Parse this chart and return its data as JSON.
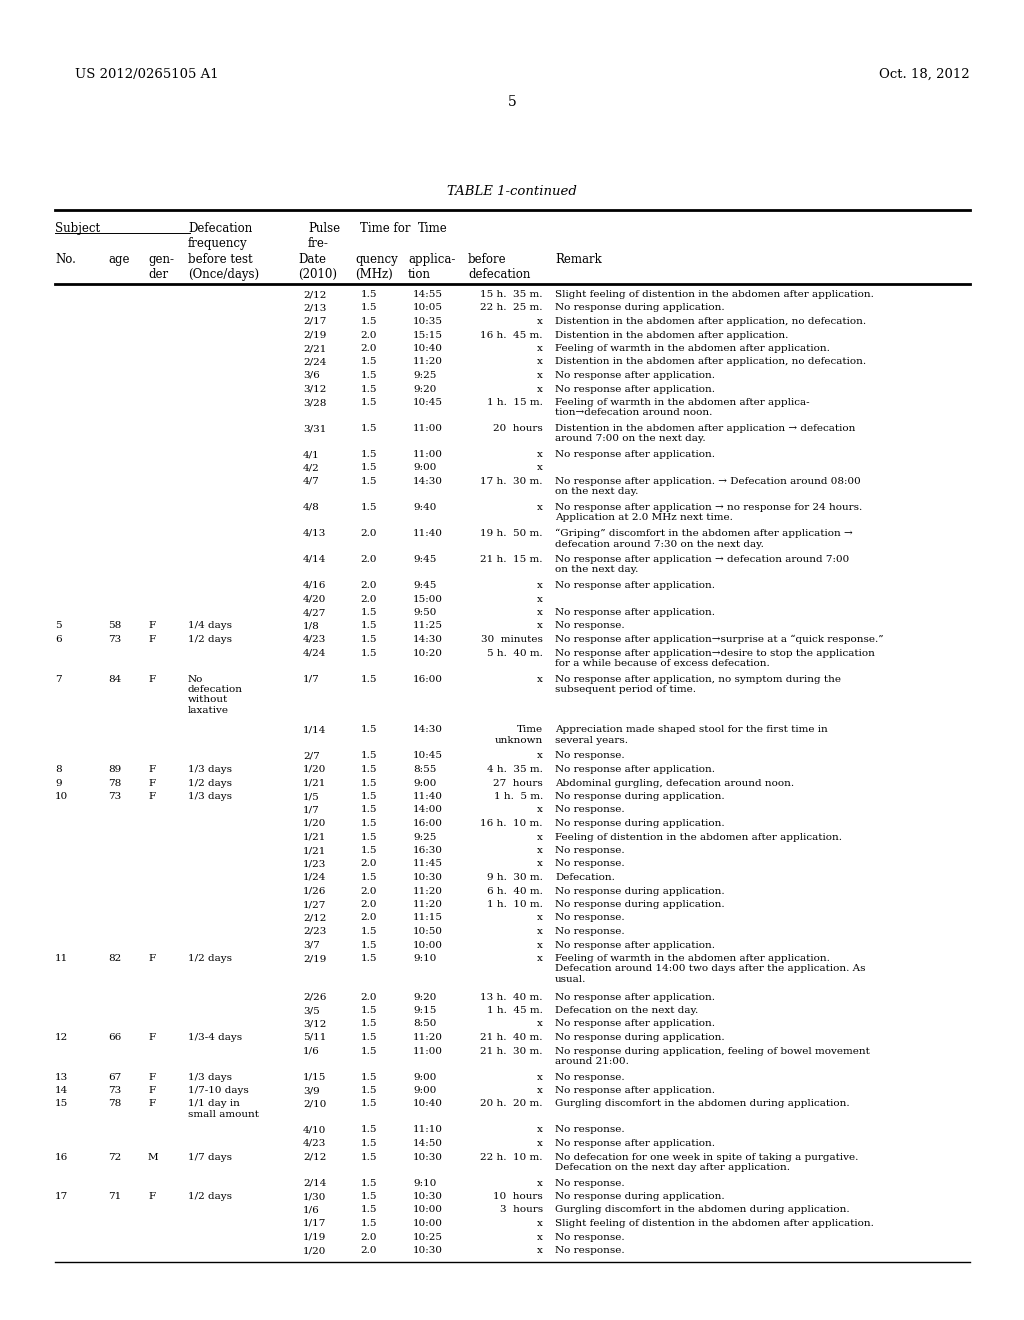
{
  "patent_number": "US 2012/0265105 A1",
  "patent_date": "Oct. 18, 2012",
  "page_number": "5",
  "table_title": "TABLE 1-continued",
  "rows": [
    [
      "",
      "",
      "",
      "",
      "2/12",
      "1.5",
      "14:55",
      "15 h.  35 m.",
      "Slight feeling of distention in the abdomen after application."
    ],
    [
      "",
      "",
      "",
      "",
      "2/13",
      "1.5",
      "10:05",
      "22 h.  25 m.",
      "No response during application."
    ],
    [
      "",
      "",
      "",
      "",
      "2/17",
      "1.5",
      "10:35",
      "x",
      "Distention in the abdomen after application, no defecation."
    ],
    [
      "",
      "",
      "",
      "",
      "2/19",
      "2.0",
      "15:15",
      "16 h.  45 m.",
      "Distention in the abdomen after application."
    ],
    [
      "",
      "",
      "",
      "",
      "2/21",
      "2.0",
      "10:40",
      "x",
      "Feeling of warmth in the abdomen after application."
    ],
    [
      "",
      "",
      "",
      "",
      "2/24",
      "1.5",
      "11:20",
      "x",
      "Distention in the abdomen after application, no defecation."
    ],
    [
      "",
      "",
      "",
      "",
      "3/6",
      "1.5",
      "9:25",
      "x",
      "No response after application."
    ],
    [
      "",
      "",
      "",
      "",
      "3/12",
      "1.5",
      "9:20",
      "x",
      "No response after application."
    ],
    [
      "",
      "",
      "",
      "",
      "3/28",
      "1.5",
      "10:45",
      "1 h.  15 m.",
      "Feeling of warmth in the abdomen after applica-\ntion→defecation around noon."
    ],
    [
      "",
      "",
      "",
      "",
      "3/31",
      "1.5",
      "11:00",
      "20  hours",
      "Distention in the abdomen after application → defecation\naround 7:00 on the next day."
    ],
    [
      "",
      "",
      "",
      "",
      "4/1",
      "1.5",
      "11:00",
      "x",
      "No response after application."
    ],
    [
      "",
      "",
      "",
      "",
      "4/2",
      "1.5",
      "9:00",
      "x",
      ""
    ],
    [
      "",
      "",
      "",
      "",
      "4/7",
      "1.5",
      "14:30",
      "17 h.  30 m.",
      "No response after application. → Defecation around 08:00\non the next day."
    ],
    [
      "",
      "",
      "",
      "",
      "4/8",
      "1.5",
      "9:40",
      "x",
      "No response after application → no response for 24 hours.\nApplication at 2.0 MHz next time."
    ],
    [
      "",
      "",
      "",
      "",
      "4/13",
      "2.0",
      "11:40",
      "19 h.  50 m.",
      "“Griping” discomfort in the abdomen after application →\ndefecation around 7:30 on the next day."
    ],
    [
      "",
      "",
      "",
      "",
      "4/14",
      "2.0",
      "9:45",
      "21 h.  15 m.",
      "No response after application → defecation around 7:00\non the next day."
    ],
    [
      "",
      "",
      "",
      "",
      "4/16",
      "2.0",
      "9:45",
      "x",
      "No response after application."
    ],
    [
      "",
      "",
      "",
      "",
      "4/20",
      "2.0",
      "15:00",
      "x",
      ""
    ],
    [
      "",
      "",
      "",
      "",
      "4/27",
      "1.5",
      "9:50",
      "x",
      "No response after application."
    ],
    [
      "5",
      "58",
      "F",
      "1/4 days",
      "1/8",
      "1.5",
      "11:25",
      "x",
      "No response."
    ],
    [
      "6",
      "73",
      "F",
      "1/2 days",
      "4/23",
      "1.5",
      "14:30",
      "30  minutes",
      "No response after application→surprise at a “quick response.”"
    ],
    [
      "",
      "",
      "",
      "",
      "4/24",
      "1.5",
      "10:20",
      "5 h.  40 m.",
      "No response after application→desire to stop the application\nfor a while because of excess defecation."
    ],
    [
      "7",
      "84",
      "F",
      "No\ndefecation\nwithout\nlaxative",
      "1/7",
      "1.5",
      "16:00",
      "x",
      "No response after application, no symptom during the\nsubsequent period of time."
    ],
    [
      "",
      "",
      "",
      "",
      "1/14",
      "1.5",
      "14:30",
      "Time\nunknown",
      "Appreciation made shaped stool for the first time in\nseveral years."
    ],
    [
      "",
      "",
      "",
      "",
      "2/7",
      "1.5",
      "10:45",
      "x",
      "No response."
    ],
    [
      "8",
      "89",
      "F",
      "1/3 days",
      "1/20",
      "1.5",
      "8:55",
      "4 h.  35 m.",
      "No response after application."
    ],
    [
      "9",
      "78",
      "F",
      "1/2 days",
      "1/21",
      "1.5",
      "9:00",
      "27  hours",
      "Abdominal gurgling, defecation around noon."
    ],
    [
      "10",
      "73",
      "F",
      "1/3 days",
      "1/5",
      "1.5",
      "11:40",
      "1 h.  5 m.",
      "No response during application."
    ],
    [
      "",
      "",
      "",
      "",
      "1/7",
      "1.5",
      "14:00",
      "x",
      "No response."
    ],
    [
      "",
      "",
      "",
      "",
      "1/20",
      "1.5",
      "16:00",
      "16 h.  10 m.",
      "No response during application."
    ],
    [
      "",
      "",
      "",
      "",
      "1/21",
      "1.5",
      "9:25",
      "x",
      "Feeling of distention in the abdomen after application."
    ],
    [
      "",
      "",
      "",
      "",
      "1/21",
      "1.5",
      "16:30",
      "x",
      "No response."
    ],
    [
      "",
      "",
      "",
      "",
      "1/23",
      "2.0",
      "11:45",
      "x",
      "No response."
    ],
    [
      "",
      "",
      "",
      "",
      "1/24",
      "1.5",
      "10:30",
      "9 h.  30 m.",
      "Defecation."
    ],
    [
      "",
      "",
      "",
      "",
      "1/26",
      "2.0",
      "11:20",
      "6 h.  40 m.",
      "No response during application."
    ],
    [
      "",
      "",
      "",
      "",
      "1/27",
      "2.0",
      "11:20",
      "1 h.  10 m.",
      "No response during application."
    ],
    [
      "",
      "",
      "",
      "",
      "2/12",
      "2.0",
      "11:15",
      "x",
      "No response."
    ],
    [
      "",
      "",
      "",
      "",
      "2/23",
      "1.5",
      "10:50",
      "x",
      "No response."
    ],
    [
      "",
      "",
      "",
      "",
      "3/7",
      "1.5",
      "10:00",
      "x",
      "No response after application."
    ],
    [
      "11",
      "82",
      "F",
      "1/2 days",
      "2/19",
      "1.5",
      "9:10",
      "x",
      "Feeling of warmth in the abdomen after application.\nDefecation around 14:00 two days after the application. As\nusual."
    ],
    [
      "",
      "",
      "",
      "",
      "2/26",
      "2.0",
      "9:20",
      "13 h.  40 m.",
      "No response after application."
    ],
    [
      "",
      "",
      "",
      "",
      "3/5",
      "1.5",
      "9:15",
      "1 h.  45 m.",
      "Defecation on the next day."
    ],
    [
      "",
      "",
      "",
      "",
      "3/12",
      "1.5",
      "8:50",
      "x",
      "No response after application."
    ],
    [
      "12",
      "66",
      "F",
      "1/3-4 days",
      "5/11",
      "1.5",
      "11:20",
      "21 h.  40 m.",
      "No response during application."
    ],
    [
      "",
      "",
      "",
      "",
      "1/6",
      "1.5",
      "11:00",
      "21 h.  30 m.",
      "No response during application, feeling of bowel movement\naround 21:00."
    ],
    [
      "13",
      "67",
      "F",
      "1/3 days",
      "1/15",
      "1.5",
      "9:00",
      "x",
      "No response."
    ],
    [
      "14",
      "73",
      "F",
      "1/7-10 days",
      "3/9",
      "1.5",
      "9:00",
      "x",
      "No response after application."
    ],
    [
      "15",
      "78",
      "F",
      "1/1 day in\nsmall amount",
      "2/10",
      "1.5",
      "10:40",
      "20 h.  20 m.",
      "Gurgling discomfort in the abdomen during application."
    ],
    [
      "",
      "",
      "",
      "",
      "4/10",
      "1.5",
      "11:10",
      "x",
      "No response."
    ],
    [
      "",
      "",
      "",
      "",
      "4/23",
      "1.5",
      "14:50",
      "x",
      "No response after application."
    ],
    [
      "16",
      "72",
      "M",
      "1/7 days",
      "2/12",
      "1.5",
      "10:30",
      "22 h.  10 m.",
      "No defecation for one week in spite of taking a purgative.\nDefecation on the next day after application."
    ],
    [
      "",
      "",
      "",
      "",
      "2/14",
      "1.5",
      "9:10",
      "x",
      "No response."
    ],
    [
      "17",
      "71",
      "F",
      "1/2 days",
      "1/30",
      "1.5",
      "10:30",
      "10  hours",
      "No response during application."
    ],
    [
      "",
      "",
      "",
      "",
      "1/6",
      "1.5",
      "10:00",
      "3  hours",
      "Gurgling discomfort in the abdomen during application."
    ],
    [
      "",
      "",
      "",
      "",
      "1/17",
      "1.5",
      "10:00",
      "x",
      "Slight feeling of distention in the abdomen after application."
    ],
    [
      "",
      "",
      "",
      "",
      "1/19",
      "2.0",
      "10:25",
      "x",
      "No response."
    ],
    [
      "",
      "",
      "",
      "",
      "1/20",
      "2.0",
      "10:30",
      "x",
      "No response."
    ]
  ]
}
